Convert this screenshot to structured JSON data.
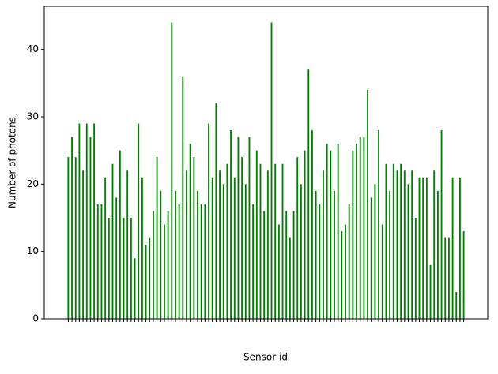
{
  "chart_data": {
    "type": "bar",
    "xlabel": "Sensor id",
    "ylabel": "Number of photons",
    "color": "#008000",
    "categories": [
      null,
      null,
      null,
      null,
      null,
      null,
      null,
      null,
      null,
      null,
      null,
      null,
      null,
      null,
      null,
      null,
      null,
      null,
      null,
      null,
      null,
      null,
      null,
      null,
      null,
      null,
      null,
      null,
      null,
      null,
      null,
      null,
      null,
      null,
      null,
      null,
      null,
      null,
      null,
      null,
      null,
      null,
      null,
      null,
      null,
      null,
      null,
      null,
      null,
      null,
      null,
      null,
      null,
      null,
      null,
      null,
      null,
      null,
      null,
      null,
      null,
      null,
      null,
      null,
      null,
      null,
      null,
      null,
      null,
      null,
      null,
      null,
      null,
      null,
      null,
      null,
      null,
      null,
      null,
      null,
      null,
      null,
      null,
      null,
      null,
      null,
      null,
      null,
      null,
      null,
      null,
      null,
      null,
      null,
      null,
      null,
      null,
      null,
      null,
      null,
      null,
      null,
      null,
      null,
      null,
      null,
      null,
      null
    ],
    "values": [
      24,
      27,
      24,
      29,
      22,
      29,
      27,
      29,
      17,
      17,
      21,
      15,
      23,
      18,
      25,
      15,
      22,
      15,
      9,
      29,
      21,
      11,
      12,
      16,
      24,
      19,
      14,
      16,
      44,
      19,
      17,
      36,
      22,
      26,
      24,
      19,
      17,
      17,
      29,
      21,
      32,
      22,
      20,
      23,
      28,
      21,
      27,
      24,
      20,
      27,
      17,
      25,
      23,
      16,
      22,
      44,
      23,
      14,
      23,
      16,
      12,
      16,
      24,
      20,
      25,
      37,
      28,
      19,
      17,
      22,
      26,
      25,
      19,
      26,
      13,
      14,
      17,
      25,
      26,
      27,
      27,
      34,
      18,
      20,
      28,
      14,
      23,
      19,
      23,
      22,
      23,
      22,
      20,
      22,
      15,
      21,
      21,
      21,
      8,
      22,
      19,
      28,
      12,
      12,
      21,
      4,
      21,
      13
    ],
    "ylim": [
      0,
      46.4
    ],
    "yticks": [
      0,
      10,
      20,
      30,
      40
    ]
  }
}
